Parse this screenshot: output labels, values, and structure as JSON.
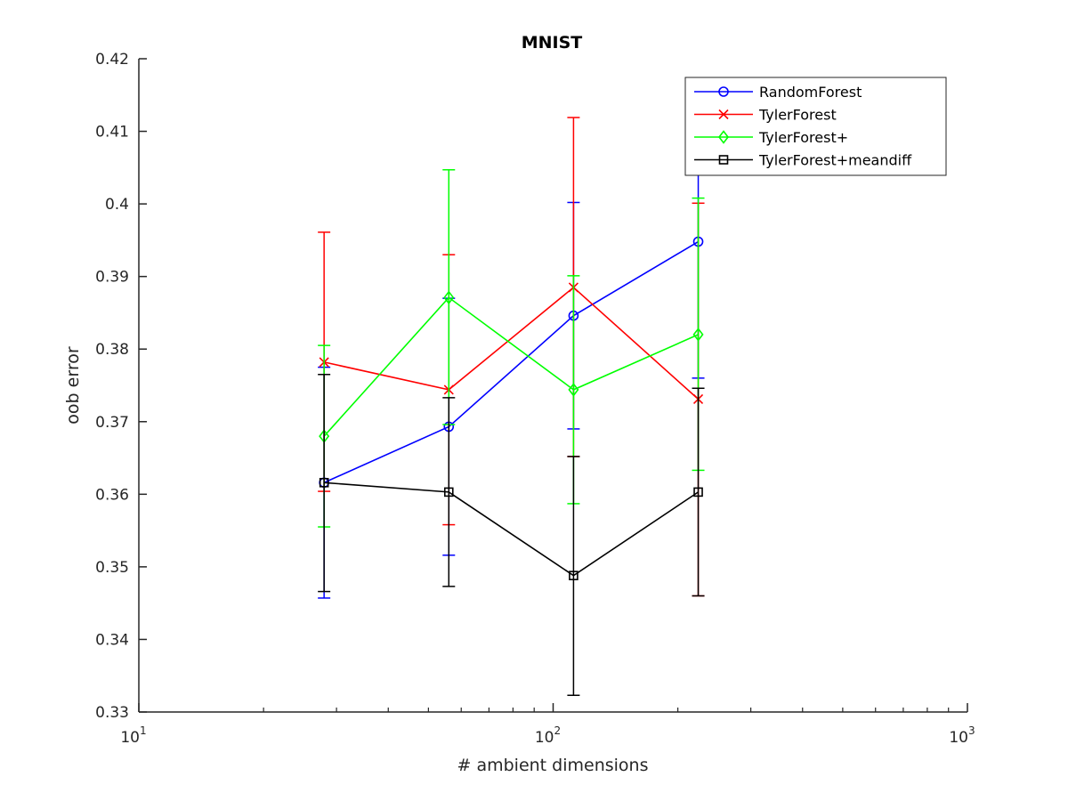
{
  "chart_data": {
    "type": "line",
    "title": "MNIST",
    "xlabel": "# ambient dimensions",
    "ylabel": "oob error",
    "xscale": "log",
    "xlim": [
      10,
      1000
    ],
    "ylim": [
      0.33,
      0.42
    ],
    "x_ticks": [
      {
        "value": 10,
        "base": "10",
        "exp": "1"
      },
      {
        "value": 100,
        "base": "10",
        "exp": "2"
      },
      {
        "value": 1000,
        "base": "10",
        "exp": "3"
      }
    ],
    "y_ticks": [
      {
        "value": 0.33,
        "label": "0.33"
      },
      {
        "value": 0.34,
        "label": "0.34"
      },
      {
        "value": 0.35,
        "label": "0.35"
      },
      {
        "value": 0.36,
        "label": "0.36"
      },
      {
        "value": 0.37,
        "label": "0.37"
      },
      {
        "value": 0.38,
        "label": "0.38"
      },
      {
        "value": 0.39,
        "label": "0.39"
      },
      {
        "value": 0.4,
        "label": "0.4"
      },
      {
        "value": 0.41,
        "label": "0.41"
      },
      {
        "value": 0.42,
        "label": "0.42"
      }
    ],
    "grid": false,
    "legend_position": "top-right",
    "x": [
      28,
      56,
      112,
      224
    ],
    "series": [
      {
        "name": "RandomForest",
        "color": "#0000ff",
        "marker": "circle",
        "values": [
          0.3616,
          0.3693,
          0.3846,
          0.3948
        ],
        "err_low": [
          0.3457,
          0.3516,
          0.369,
          0.376
        ],
        "err_high": [
          0.3775,
          0.387,
          0.4002,
          0.4136
        ]
      },
      {
        "name": "TylerForest",
        "color": "#ff0000",
        "marker": "x",
        "values": [
          0.3782,
          0.3744,
          0.3885,
          0.3731
        ],
        "err_low": [
          0.3604,
          0.3558,
          0.3652,
          0.346
        ],
        "err_high": [
          0.3961,
          0.393,
          0.4119,
          0.4001
        ]
      },
      {
        "name": "TylerForest+",
        "color": "#00ff00",
        "marker": "diamond",
        "values": [
          0.368,
          0.3871,
          0.3744,
          0.382
        ],
        "err_low": [
          0.3555,
          0.3696,
          0.3587,
          0.3633
        ],
        "err_high": [
          0.3805,
          0.4047,
          0.3901,
          0.4008
        ]
      },
      {
        "name": "TylerForest+meandiff",
        "color": "#000000",
        "marker": "square",
        "values": [
          0.3616,
          0.3603,
          0.3488,
          0.3603
        ],
        "err_low": [
          0.3466,
          0.3473,
          0.3323,
          0.346
        ],
        "err_high": [
          0.3765,
          0.3733,
          0.3652,
          0.3746
        ]
      }
    ]
  }
}
